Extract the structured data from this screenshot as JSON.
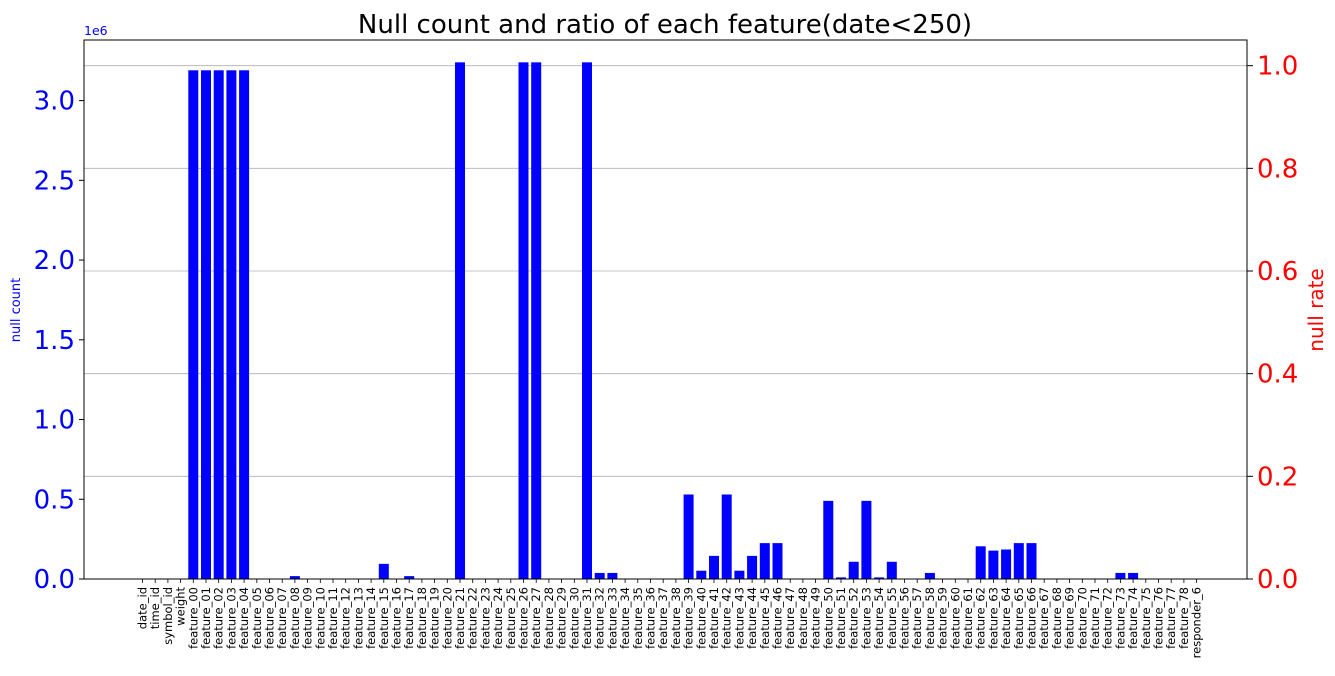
{
  "chart_data": {
    "type": "bar",
    "title": "Null count and ratio of each feature(date<250)",
    "ylabel": "null count",
    "y2label": "null rate",
    "y_offset_label": "1e6",
    "ylim": [
      0,
      3.38
    ],
    "y2lim": [
      0,
      1.05
    ],
    "yticks": [
      0.0,
      0.5,
      1.0,
      1.5,
      2.0,
      2.5,
      3.0
    ],
    "ytick_labels": [
      "0.0",
      "0.5",
      "1.0",
      "1.5",
      "2.0",
      "2.5",
      "3.0"
    ],
    "y2ticks": [
      0.0,
      0.2,
      0.4,
      0.6,
      0.8,
      1.0
    ],
    "y2tick_labels": [
      "0.0",
      "0.2",
      "0.4",
      "0.6",
      "0.8",
      "1.0"
    ],
    "grid": "right-axis horizontal lines",
    "bar_color": "#0000ff",
    "left_axis_color": "#0000ff",
    "right_axis_color": "#ff0000",
    "categories": [
      "date_id",
      "time_id",
      "symbol_id",
      "weight",
      "feature_00",
      "feature_01",
      "feature_02",
      "feature_03",
      "feature_04",
      "feature_05",
      "feature_06",
      "feature_07",
      "feature_08",
      "feature_09",
      "feature_10",
      "feature_11",
      "feature_12",
      "feature_13",
      "feature_14",
      "feature_15",
      "feature_16",
      "feature_17",
      "feature_18",
      "feature_19",
      "feature_20",
      "feature_21",
      "feature_22",
      "feature_23",
      "feature_24",
      "feature_25",
      "feature_26",
      "feature_27",
      "feature_28",
      "feature_29",
      "feature_30",
      "feature_31",
      "feature_32",
      "feature_33",
      "feature_34",
      "feature_35",
      "feature_36",
      "feature_37",
      "feature_38",
      "feature_39",
      "feature_40",
      "feature_41",
      "feature_42",
      "feature_43",
      "feature_44",
      "feature_45",
      "feature_46",
      "feature_47",
      "feature_48",
      "feature_49",
      "feature_50",
      "feature_51",
      "feature_52",
      "feature_53",
      "feature_54",
      "feature_55",
      "feature_56",
      "feature_57",
      "feature_58",
      "feature_59",
      "feature_60",
      "feature_61",
      "feature_62",
      "feature_63",
      "feature_64",
      "feature_65",
      "feature_66",
      "feature_67",
      "feature_68",
      "feature_69",
      "feature_70",
      "feature_71",
      "feature_72",
      "feature_73",
      "feature_74",
      "feature_75",
      "feature_76",
      "feature_77",
      "feature_78",
      "responder_6"
    ],
    "tick_label_every": 2,
    "values": [
      0,
      0,
      0,
      0,
      3.19,
      3.19,
      3.19,
      3.19,
      3.19,
      0,
      0,
      0,
      0.018,
      0,
      0,
      0,
      0,
      0,
      0,
      0.095,
      0,
      0.018,
      0,
      0,
      0,
      3.24,
      0,
      0,
      0,
      0,
      3.24,
      3.24,
      0,
      0,
      0,
      3.24,
      0.038,
      0.038,
      0,
      0,
      0,
      0,
      0,
      0.53,
      0.052,
      0.145,
      0.53,
      0.052,
      0.145,
      0.225,
      0.225,
      0,
      0,
      0,
      0.49,
      0.01,
      0.108,
      0.49,
      0.01,
      0.108,
      0,
      0,
      0.038,
      0,
      0,
      0,
      0.205,
      0.178,
      0.185,
      0.225,
      0.225,
      0,
      0,
      0,
      0,
      0,
      0,
      0.038,
      0.038,
      0,
      0,
      0,
      0,
      0
    ]
  }
}
